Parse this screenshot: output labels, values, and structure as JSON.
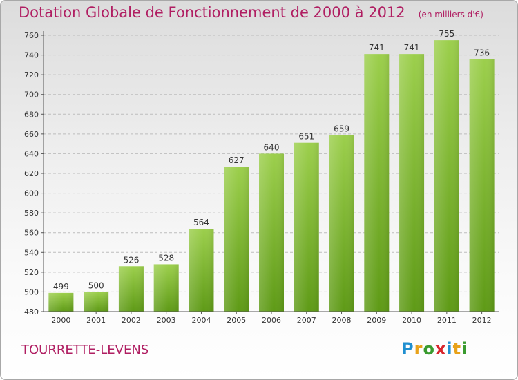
{
  "title": "Dotation Globale de Fonctionnement de 2000 à 2012",
  "unit_note": "(en milliers d'€)",
  "commune": "TOURRETTE-LEVENS",
  "logo": {
    "letters": [
      "P",
      "r",
      "o",
      "x",
      "i",
      "t",
      "i"
    ],
    "colors": [
      "#1f8fd0",
      "#e8a21a",
      "#3a9b2f",
      "#d8262d",
      "#1f8fd0",
      "#e8a21a",
      "#3a9b2f"
    ]
  },
  "colors": {
    "title": "#b01e62",
    "bar_top": "#9ccf4c",
    "bar_bottom": "#5e9a16",
    "grid": "#bdbdbd"
  },
  "chart_data": {
    "type": "bar",
    "categories": [
      "2000",
      "2001",
      "2002",
      "2003",
      "2004",
      "2005",
      "2006",
      "2007",
      "2008",
      "2009",
      "2010",
      "2011",
      "2012"
    ],
    "values": [
      499,
      500,
      526,
      528,
      564,
      627,
      640,
      651,
      659,
      741,
      741,
      755,
      736
    ],
    "title": "Dotation Globale de Fonctionnement de 2000 à 2012",
    "xlabel": "",
    "ylabel": "",
    "ylim": [
      480,
      760
    ],
    "yticks": [
      480,
      500,
      520,
      540,
      560,
      580,
      600,
      620,
      640,
      660,
      680,
      700,
      720,
      740,
      760
    ],
    "grid": true
  }
}
